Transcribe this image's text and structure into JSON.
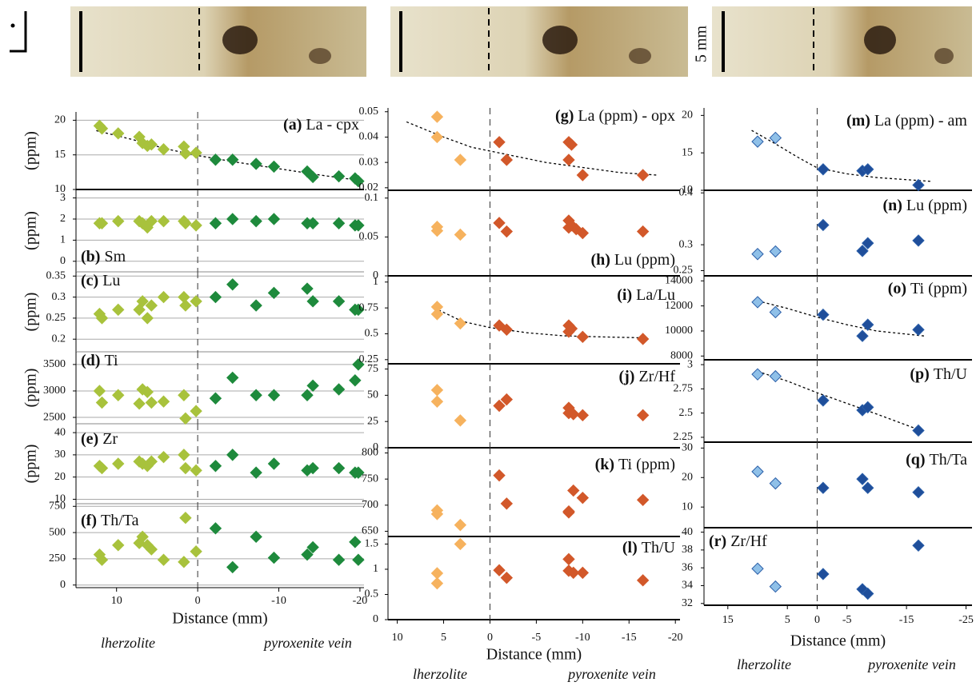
{
  "scale_bar": "5 mm",
  "chart_data": [
    {
      "type": "scatter",
      "letter": "(a)",
      "title": "La - cpx",
      "ylabel": "(ppm)",
      "grid": true,
      "xlim": [
        15,
        -20.5
      ],
      "ylim": [
        10,
        21.2
      ],
      "yticks": [
        10,
        15,
        20
      ],
      "series": [
        {
          "color": "#a8c23c",
          "x": [
            12.1,
            11.8,
            9.8,
            7.2,
            6.8,
            6.2,
            5.7,
            4.2,
            1.7,
            1.5,
            0.2
          ],
          "values": [
            19.2,
            18.8,
            18.1,
            17.6,
            16.7,
            16.3,
            16.5,
            15.8,
            16.2,
            15.2,
            15.3
          ]
        },
        {
          "color": "#1e8a3c",
          "x": [
            -2.2,
            -4.3,
            -7.2,
            -9.4,
            -13.5,
            -14.2,
            -17.4,
            -19.4,
            -19.8
          ],
          "values": [
            14.3,
            14.3,
            13.7,
            13.3,
            12.6,
            11.8,
            11.9,
            11.6,
            11.2
          ]
        }
      ],
      "trend": {
        "x": [
          12.5,
          8,
          4,
          0,
          -5,
          -10,
          -15,
          -20
        ],
        "values": [
          18.5,
          17.2,
          15.9,
          14.9,
          13.9,
          13.0,
          12.1,
          11.3
        ]
      }
    },
    {
      "type": "scatter",
      "letter": "(b)",
      "title": "Sm",
      "ylabel": "(ppm)",
      "grid": true,
      "xlim": [
        15,
        -20.5
      ],
      "ylim": [
        -0.5,
        3.4
      ],
      "yticks": [
        0,
        1,
        2,
        3
      ],
      "series": [
        {
          "color": "#a8c23c",
          "x": [
            12.1,
            11.8,
            9.8,
            7.2,
            6.8,
            6.2,
            5.7,
            4.2,
            1.7,
            1.5,
            0.2
          ],
          "values": [
            1.8,
            1.8,
            1.9,
            1.9,
            1.8,
            1.6,
            1.9,
            1.9,
            1.9,
            1.8,
            1.7
          ]
        },
        {
          "color": "#1e8a3c",
          "x": [
            -2.2,
            -4.3,
            -7.2,
            -9.4,
            -13.5,
            -14.2,
            -17.4,
            -19.4,
            -19.8
          ],
          "values": [
            1.8,
            2.0,
            1.9,
            2.0,
            1.8,
            1.8,
            1.8,
            1.7,
            1.7
          ]
        }
      ]
    },
    {
      "type": "scatter",
      "letter": "(c)",
      "title": "Lu",
      "ylabel": "(ppm)",
      "grid": true,
      "xlim": [
        15,
        -20.5
      ],
      "ylim": [
        0.17,
        0.36
      ],
      "yticks": [
        0.2,
        0.25,
        0.3,
        0.35
      ],
      "series": [
        {
          "color": "#a8c23c",
          "x": [
            12.1,
            11.8,
            9.8,
            7.2,
            6.8,
            6.2,
            5.7,
            4.2,
            1.7,
            1.5,
            0.2
          ],
          "values": [
            0.26,
            0.25,
            0.27,
            0.27,
            0.29,
            0.25,
            0.28,
            0.3,
            0.3,
            0.28,
            0.29
          ]
        },
        {
          "color": "#1e8a3c",
          "x": [
            -2.2,
            -4.3,
            -7.2,
            -9.4,
            -13.5,
            -14.2,
            -17.4,
            -19.4,
            -19.8
          ],
          "values": [
            0.3,
            0.33,
            0.28,
            0.31,
            0.32,
            0.29,
            0.29,
            0.27,
            0.27
          ]
        }
      ]
    },
    {
      "type": "scatter",
      "letter": "(d)",
      "title": "Ti",
      "ylabel": "(ppm)",
      "grid": true,
      "xlim": [
        15,
        -20.5
      ],
      "ylim": [
        2380,
        3740
      ],
      "yticks": [
        2500,
        3000,
        3500
      ],
      "series": [
        {
          "color": "#a8c23c",
          "x": [
            12.1,
            11.8,
            9.8,
            7.2,
            6.8,
            6.2,
            5.7,
            4.2,
            1.7,
            1.5,
            0.2
          ],
          "values": [
            3000,
            2780,
            2920,
            2760,
            3030,
            2980,
            2780,
            2800,
            2920,
            2480,
            2620
          ]
        },
        {
          "color": "#1e8a3c",
          "x": [
            -2.2,
            -4.3,
            -7.2,
            -9.4,
            -13.5,
            -14.2,
            -17.4,
            -19.4,
            -19.8
          ],
          "values": [
            2860,
            3250,
            2920,
            2920,
            2920,
            3100,
            3030,
            3200,
            3500
          ]
        }
      ]
    },
    {
      "type": "scatter",
      "letter": "(e)",
      "title": "Zr",
      "ylabel": "(ppm)",
      "grid": true,
      "xlim": [
        15,
        -20.5
      ],
      "ylim": [
        8,
        44
      ],
      "yticks": [
        10,
        20,
        30,
        40
      ],
      "series": [
        {
          "color": "#a8c23c",
          "x": [
            12.1,
            11.8,
            9.8,
            7.2,
            6.8,
            6.2,
            5.7,
            4.2,
            1.7,
            1.5,
            0.2
          ],
          "values": [
            25,
            24,
            26,
            27,
            26,
            25,
            27,
            29,
            30,
            24,
            23
          ]
        },
        {
          "color": "#1e8a3c",
          "x": [
            -2.2,
            -4.3,
            -7.2,
            -9.4,
            -13.5,
            -14.2,
            -17.4,
            -19.4,
            -19.8
          ],
          "values": [
            25,
            30,
            22,
            26,
            23,
            24,
            24,
            22,
            22
          ]
        }
      ]
    },
    {
      "type": "scatter",
      "letter": "(f)",
      "title": "Th/Ta",
      "grid": true,
      "xlim": [
        15,
        -20.5
      ],
      "ylim": [
        -25,
        775
      ],
      "yticks": [
        0,
        250,
        500,
        750
      ],
      "xticks": [
        10,
        0,
        -10,
        -20
      ],
      "xlabel": "Distance (mm)",
      "annotations": [
        "lherzolite",
        "pyroxenite vein"
      ],
      "series": [
        {
          "color": "#a8c23c",
          "x": [
            12.1,
            11.8,
            9.8,
            7.2,
            6.8,
            6.2,
            5.7,
            4.2,
            1.7,
            1.5,
            0.2
          ],
          "values": [
            290,
            240,
            380,
            400,
            460,
            380,
            340,
            240,
            220,
            640,
            320
          ]
        },
        {
          "color": "#1e8a3c",
          "x": [
            -2.2,
            -4.3,
            -7.2,
            -9.4,
            -13.5,
            -14.2,
            -17.4,
            -19.4,
            -19.8
          ],
          "values": [
            540,
            170,
            460,
            260,
            290,
            360,
            240,
            410,
            240
          ]
        }
      ]
    },
    {
      "type": "scatter",
      "letter": "(g)",
      "title": "La (ppm) - opx",
      "xlim": [
        11,
        -20.5
      ],
      "ylim": [
        0.019,
        0.0515
      ],
      "yticks": [
        0.02,
        0.03,
        0.04,
        0.05
      ],
      "series": [
        {
          "color": "#f6b25e",
          "x": [
            5.7,
            5.7,
            3.2
          ],
          "values": [
            0.048,
            0.04,
            0.031
          ]
        },
        {
          "color": "#d2582a",
          "x": [
            -1,
            -1.8,
            -8.5,
            -8.8,
            -8.5,
            -10,
            -16.5
          ],
          "values": [
            0.038,
            0.031,
            0.038,
            0.037,
            0.031,
            0.025,
            0.025
          ]
        }
      ],
      "trend": {
        "x": [
          9,
          5,
          2,
          -2,
          -6,
          -10,
          -14,
          -18
        ],
        "values": [
          0.046,
          0.04,
          0.036,
          0.033,
          0.03,
          0.028,
          0.026,
          0.025
        ]
      }
    },
    {
      "type": "scatter",
      "letter": "(h)",
      "title": "Lu (ppm)",
      "xlim": [
        11,
        -20.5
      ],
      "ylim": [
        0,
        0.11
      ],
      "yticks": [
        0,
        0.05,
        0.1
      ],
      "series": [
        {
          "color": "#f6b25e",
          "x": [
            5.7,
            5.7,
            3.2
          ],
          "values": [
            0.063,
            0.058,
            0.053
          ]
        },
        {
          "color": "#d2582a",
          "x": [
            -1,
            -1.8,
            -8.5,
            -8.5,
            -8.8,
            -9.3,
            -10,
            -16.5
          ],
          "values": [
            0.068,
            0.057,
            0.071,
            0.062,
            0.065,
            0.06,
            0.055,
            0.057
          ]
        }
      ]
    },
    {
      "type": "scatter",
      "letter": "(i)",
      "title": "La/Lu",
      "xlim": [
        11,
        -20.5
      ],
      "ylim": [
        0.21,
        1.06
      ],
      "yticks": [
        0.25,
        0.5,
        0.75,
        1
      ],
      "series": [
        {
          "color": "#f6b25e",
          "x": [
            5.7,
            5.7,
            3.2
          ],
          "values": [
            0.76,
            0.69,
            0.6
          ]
        },
        {
          "color": "#d2582a",
          "x": [
            -1,
            -1.8,
            -8.5,
            -8.5,
            -8.8,
            -10,
            -16.5
          ],
          "values": [
            0.58,
            0.54,
            0.58,
            0.52,
            0.55,
            0.47,
            0.45
          ]
        }
      ],
      "trend": {
        "x": [
          6,
          3,
          0,
          -4,
          -8,
          -12,
          -17
        ],
        "values": [
          0.75,
          0.62,
          0.56,
          0.51,
          0.48,
          0.47,
          0.46
        ]
      }
    },
    {
      "type": "scatter",
      "letter": "(j)",
      "title": "Zr/Hf",
      "xlim": [
        11,
        -20.5
      ],
      "ylim": [
        0,
        80
      ],
      "yticks": [
        0,
        25,
        50,
        75
      ],
      "series": [
        {
          "color": "#f6b25e",
          "x": [
            5.7,
            5.7,
            3.2
          ],
          "values": [
            55,
            44,
            26
          ]
        },
        {
          "color": "#d2582a",
          "x": [
            -1,
            -1.8,
            -8.5,
            -8.5,
            -9,
            -10,
            -16.5
          ],
          "values": [
            40,
            46,
            38,
            33,
            32,
            31,
            31
          ]
        }
      ]
    },
    {
      "type": "scatter",
      "letter": "(k)",
      "title": "Ti (ppm)",
      "xlim": [
        11,
        -20.5
      ],
      "ylim": [
        640,
        810
      ],
      "yticks": [
        650,
        700,
        750,
        800
      ],
      "series": [
        {
          "color": "#f6b25e",
          "x": [
            5.7,
            5.7,
            3.2
          ],
          "values": [
            690,
            683,
            662
          ]
        },
        {
          "color": "#d2582a",
          "x": [
            -1,
            -1.8,
            -8.5,
            -8.5,
            -9,
            -10,
            -16.5
          ],
          "values": [
            757,
            703,
            686,
            688,
            728,
            714,
            710
          ]
        }
      ]
    },
    {
      "type": "scatter",
      "letter": "(l)",
      "title": "Th/U",
      "xlim": [
        11,
        -20.5
      ],
      "ylim": [
        0,
        1.65
      ],
      "yticks": [
        0,
        0.5,
        1,
        1.5
      ],
      "xticks": [
        10,
        5,
        0,
        -5,
        -10,
        -15,
        -20
      ],
      "xlabel": "Distance (mm)",
      "annotations": [
        "lherzolite",
        "pyroxenite vein"
      ],
      "series": [
        {
          "color": "#f6b25e",
          "x": [
            5.7,
            5.7,
            3.2
          ],
          "values": [
            0.92,
            0.72,
            1.5
          ]
        },
        {
          "color": "#d2582a",
          "x": [
            -1,
            -1.8,
            -8.5,
            -8.5,
            -9,
            -10,
            -16.5
          ],
          "values": [
            0.98,
            0.83,
            1.2,
            0.97,
            0.93,
            0.93,
            0.78
          ]
        }
      ]
    },
    {
      "type": "scatter",
      "letter": "(m)",
      "title": "La (ppm) - am",
      "xlim": [
        19,
        -26
      ],
      "ylim": [
        10,
        21
      ],
      "yticks": [
        10,
        15,
        20
      ],
      "series": [
        {
          "color": "#8fc0e8",
          "x": [
            10,
            7
          ],
          "values": [
            16.5,
            17
          ]
        },
        {
          "color": "#1f4e9a",
          "x": [
            -1,
            -7.6,
            -8.5,
            -17
          ],
          "values": [
            12.8,
            12.6,
            12.8,
            10.7
          ]
        }
      ],
      "trend": {
        "x": [
          11,
          7,
          3,
          0,
          -5,
          -10,
          -19
        ],
        "values": [
          18,
          16.2,
          14.3,
          13,
          12.2,
          11.7,
          11.2
        ]
      }
    },
    {
      "type": "scatter",
      "letter": "(n)",
      "title": "Lu (ppm)",
      "xlim": [
        19,
        -26
      ],
      "ylim": [
        0.24,
        0.405
      ],
      "yticks": [
        0.25,
        0.3,
        0.4
      ],
      "series": [
        {
          "color": "#8fc0e8",
          "x": [
            10,
            7
          ],
          "values": [
            0.282,
            0.287
          ]
        },
        {
          "color": "#1f4e9a",
          "x": [
            -1,
            -7.6,
            -8.5,
            -17
          ],
          "values": [
            0.338,
            0.288,
            0.303,
            0.308
          ]
        }
      ]
    },
    {
      "type": "scatter",
      "letter": "(o)",
      "title": "Ti (ppm)",
      "xlim": [
        19,
        -26
      ],
      "ylim": [
        7700,
        14400
      ],
      "yticks": [
        8000,
        10000,
        12000,
        14000
      ],
      "series": [
        {
          "color": "#8fc0e8",
          "x": [
            10,
            7
          ],
          "values": [
            12300,
            11500
          ]
        },
        {
          "color": "#1f4e9a",
          "x": [
            -1,
            -7.6,
            -8.5,
            -17
          ],
          "values": [
            11300,
            9600,
            10500,
            10100
          ]
        }
      ],
      "trend": {
        "x": [
          10,
          5,
          0,
          -5,
          -10,
          -18
        ],
        "values": [
          12400,
          11800,
          11100,
          10500,
          10000,
          9600
        ]
      }
    },
    {
      "type": "scatter",
      "letter": "(p)",
      "title": "Th/U",
      "xlim": [
        19,
        -26
      ],
      "ylim": [
        2.2,
        3.05
      ],
      "yticks": [
        2.25,
        2.5,
        2.75,
        3
      ],
      "series": [
        {
          "color": "#8fc0e8",
          "x": [
            10,
            7
          ],
          "values": [
            2.9,
            2.88
          ]
        },
        {
          "color": "#1f4e9a",
          "x": [
            -1,
            -7.6,
            -8.5,
            -17
          ],
          "values": [
            2.63,
            2.53,
            2.56,
            2.32
          ]
        }
      ],
      "trend": {
        "x": [
          10,
          5,
          0,
          -5,
          -10,
          -17
        ],
        "values": [
          2.93,
          2.83,
          2.71,
          2.6,
          2.49,
          2.33
        ]
      }
    },
    {
      "type": "scatter",
      "letter": "(q)",
      "title": "Th/Ta",
      "xlim": [
        19,
        -26
      ],
      "ylim": [
        3,
        32
      ],
      "yticks": [
        10,
        20,
        30
      ],
      "series": [
        {
          "color": "#8fc0e8",
          "x": [
            10,
            7
          ],
          "values": [
            22,
            18
          ]
        },
        {
          "color": "#1f4e9a",
          "x": [
            -1,
            -7.6,
            -8.5,
            -17
          ],
          "values": [
            16.5,
            19.5,
            16.5,
            15
          ]
        }
      ]
    },
    {
      "type": "scatter",
      "letter": "(r)",
      "title": "Zr/Hf",
      "xlim": [
        19,
        -26
      ],
      "ylim": [
        31.8,
        40.5
      ],
      "yticks": [
        32,
        34,
        36,
        38,
        40
      ],
      "xticks": [
        15,
        5,
        0,
        -5,
        -15,
        -25
      ],
      "xlabel": "Distance (mm)",
      "annotations": [
        "lherzolite",
        "pyroxenite vein"
      ],
      "series": [
        {
          "color": "#8fc0e8",
          "x": [
            10,
            7
          ],
          "values": [
            35.9,
            33.9
          ]
        },
        {
          "color": "#1f4e9a",
          "x": [
            -1,
            -7.6,
            -8.5,
            -17
          ],
          "values": [
            35.3,
            33.6,
            33.1,
            38.5
          ]
        }
      ]
    }
  ]
}
